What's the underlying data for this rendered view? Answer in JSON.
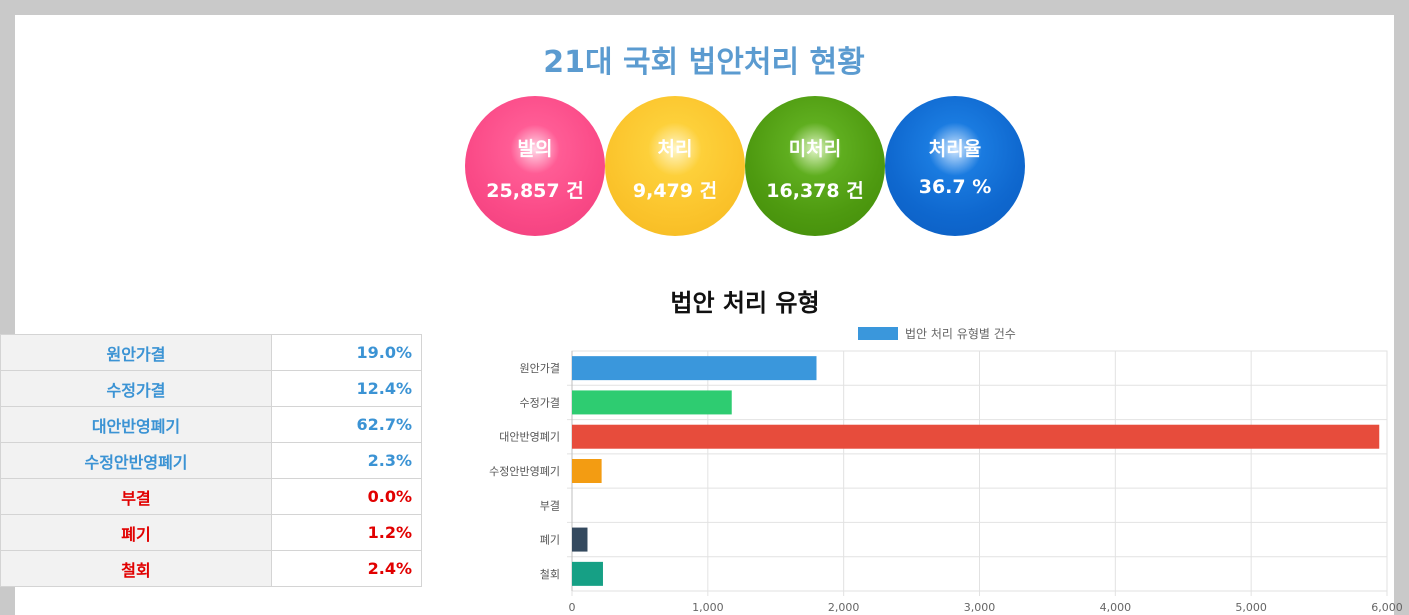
{
  "title": "21대 국회 법안처리 현황",
  "stats": [
    {
      "label": "발의",
      "value": "25,857 건"
    },
    {
      "label": "처리",
      "value": "9,479 건"
    },
    {
      "label": "미처리",
      "value": "16,378 건"
    },
    {
      "label": "처리율",
      "value": "36.7 %"
    }
  ],
  "section_title": "법안 처리 유형",
  "table": [
    {
      "name": "원안가결",
      "pct": "19.0%",
      "style": "blue"
    },
    {
      "name": "수정가결",
      "pct": "12.4%",
      "style": "blue"
    },
    {
      "name": "대안반영폐기",
      "pct": "62.7%",
      "style": "blue"
    },
    {
      "name": "수정안반영폐기",
      "pct": "2.3%",
      "style": "blue"
    },
    {
      "name": "부결",
      "pct": "0.0%",
      "style": "red"
    },
    {
      "name": "폐기",
      "pct": "1.2%",
      "style": "red"
    },
    {
      "name": "철회",
      "pct": "2.4%",
      "style": "red"
    }
  ],
  "colors": {
    "원안가결": "#3a97dc",
    "수정가결": "#2ecc71",
    "대안반영폐기": "#e74c3c",
    "수정안반영폐기": "#f39c12",
    "부결": "#8e44ad",
    "폐기": "#34495e",
    "철회": "#16a085"
  },
  "chart_data": {
    "type": "bar",
    "orientation": "horizontal",
    "categories": [
      "원안가결",
      "수정가결",
      "대안반영폐기",
      "수정안반영폐기",
      "부결",
      "폐기",
      "철회"
    ],
    "series": [
      {
        "name": "법안 처리 유형별 건수",
        "values": [
          1800,
          1176,
          5943,
          218,
          0,
          114,
          228
        ]
      }
    ],
    "xlim": [
      0,
      6000
    ],
    "xticks": [
      0,
      1000,
      2000,
      3000,
      4000,
      5000,
      6000
    ],
    "xtick_labels": [
      "0",
      "1,000",
      "2,000",
      "3,000",
      "4,000",
      "5,000",
      "6,000"
    ],
    "legend": "top",
    "grid": true
  }
}
